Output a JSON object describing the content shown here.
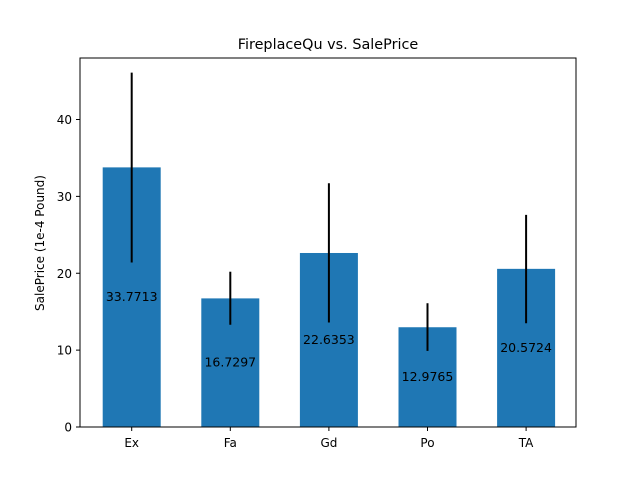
{
  "chart_data": {
    "type": "bar",
    "title": "FireplaceQu vs. SalePrice",
    "xlabel": "",
    "ylabel": "SalePrice (1e-4 Pound)",
    "categories": [
      "Ex",
      "Fa",
      "Gd",
      "Po",
      "TA"
    ],
    "values": [
      33.7713,
      16.7297,
      22.6353,
      12.9765,
      20.5724
    ],
    "value_labels": [
      "33.7713",
      "16.7297",
      "22.6353",
      "12.9765",
      "20.5724"
    ],
    "error_low": [
      21.4,
      13.3,
      13.6,
      9.9,
      13.5
    ],
    "error_high": [
      46.1,
      20.2,
      31.7,
      16.1,
      27.6
    ],
    "ylim": [
      0,
      48
    ],
    "yticks": [
      0,
      10,
      20,
      30,
      40
    ],
    "ytick_labels": [
      "0",
      "10",
      "20",
      "30",
      "40"
    ],
    "grid": false,
    "legend": "none",
    "colors": {
      "bar": "#1f77b4",
      "error": "#000000"
    }
  }
}
